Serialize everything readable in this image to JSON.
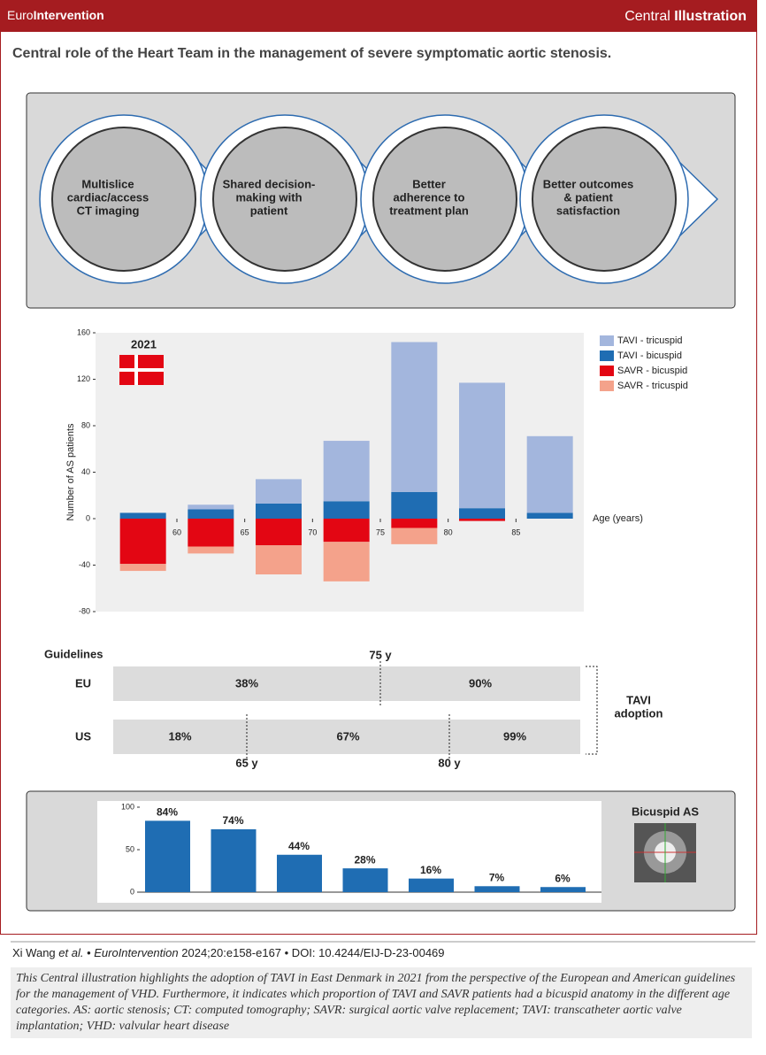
{
  "header": {
    "brand": [
      "Euro",
      "Intervention"
    ],
    "label": [
      "Central",
      "Illustration"
    ]
  },
  "title": "Central role of the Heart Team in the management of severe symptomatic aortic stenosis.",
  "steps": [
    [
      "Multislice",
      "cardiac/access",
      "CT imaging"
    ],
    [
      "Shared decision-",
      "making with",
      "patient"
    ],
    [
      "Better",
      "adherence to",
      "treatment plan"
    ],
    [
      "Better outcomes",
      "& patient",
      "satisfaction"
    ]
  ],
  "chart_data": [
    {
      "type": "stacked-bar",
      "title": "2021",
      "y_label": "Number of AS patients",
      "x_label": "Age (years)",
      "x": [
        57.5,
        62.5,
        67.5,
        72.5,
        77.5,
        82.5,
        87.5
      ],
      "xlim": [
        54,
        90
      ],
      "xticks": [
        60,
        65,
        70,
        75,
        80,
        85
      ],
      "ylim": [
        -80,
        160
      ],
      "yticks": [
        -80,
        -40,
        0,
        40,
        80,
        120,
        160
      ],
      "legend": "top-right",
      "series": [
        {
          "name": "TAVI - tricuspid",
          "color": "#a3b6dd",
          "values": [
            0,
            4,
            21,
            52,
            129,
            108,
            66
          ]
        },
        {
          "name": "TAVI - bicuspid",
          "color": "#1f6db3",
          "values": [
            5,
            8,
            13,
            15,
            23,
            9,
            5
          ]
        },
        {
          "name": "SAVR - bicuspid",
          "color": "#e30613",
          "values": [
            -39,
            -24,
            -23,
            -20,
            -8,
            -2,
            0
          ]
        },
        {
          "name": "SAVR - tricuspid",
          "color": "#f4a28b",
          "values": [
            -6,
            -6,
            -25,
            -34,
            -14,
            0,
            0
          ]
        }
      ]
    },
    {
      "type": "bar",
      "title": "Bicuspid AS",
      "categories": [
        null,
        null,
        null,
        null,
        null,
        null,
        null
      ],
      "values": [
        84,
        74,
        44,
        28,
        16,
        7,
        6
      ],
      "value_labels": [
        "84%",
        "74%",
        "44%",
        "28%",
        "16%",
        "7%",
        "6%"
      ],
      "color": "#1f6db3",
      "ylim": [
        0,
        100
      ],
      "yticks": [
        0,
        50,
        100
      ]
    }
  ],
  "guidelines": {
    "title": "Guidelines",
    "rows": [
      {
        "label": "EU",
        "segments": [
          "38%",
          "90%"
        ]
      },
      {
        "label": "US",
        "segments": [
          "18%",
          "67%",
          "99%"
        ]
      }
    ],
    "cutoffs": {
      "eu": [
        "75 y"
      ],
      "us": [
        "65 y",
        "80 y"
      ]
    },
    "bracket": [
      "TAVI",
      "adoption"
    ]
  },
  "footer": {
    "citation": [
      "Xi Wang ",
      "et al.",
      " • ",
      "EuroIntervention",
      " 2024;20:e158-e167 • DOI: 10.4244/EIJ-D-23-00469"
    ],
    "caption": "This Central illustration highlights the adoption of TAVI in East Denmark in 2021 from the perspective of the European and American guidelines for the management of VHD. Furthermore, it indicates which proportion of TAVI and SAVR patients had a bicuspid anatomy in the different age categories. AS: aortic stenosis; CT: computed tomography; SAVR: surgical aortic valve replacement; TAVI: transcatheter aortic valve implantation; VHD: valvular heart disease"
  }
}
